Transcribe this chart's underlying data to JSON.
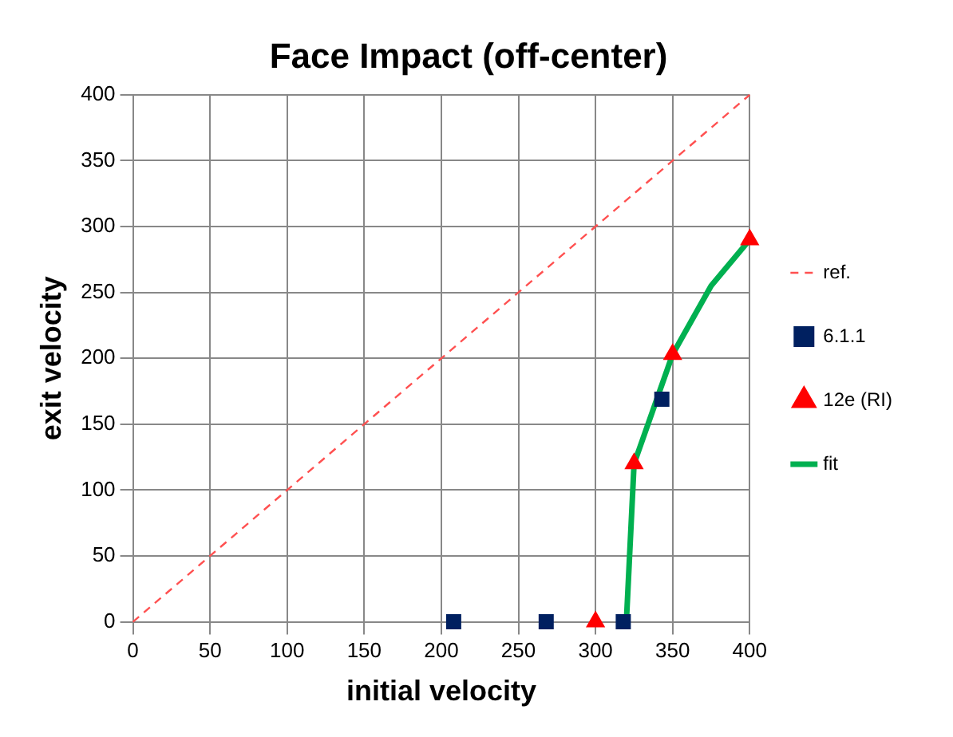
{
  "chart_data": {
    "type": "scatter",
    "title": "Face Impact (off-center)",
    "xlabel": "initial velocity",
    "ylabel": "exit velocity",
    "xlim": [
      0,
      400
    ],
    "xticks": [
      0,
      50,
      100,
      150,
      200,
      250,
      300,
      350,
      400
    ],
    "ylim": [
      0,
      400
    ],
    "yticks": [
      0,
      50,
      100,
      150,
      200,
      250,
      300,
      350,
      400
    ],
    "grid": true,
    "legend": "right",
    "series": [
      {
        "name": "ref.",
        "type": "line",
        "color": "#ff5050",
        "line_style": "dashed",
        "marker": "none",
        "x": [
          0,
          400
        ],
        "values": [
          0,
          400
        ]
      },
      {
        "name": "6.1.1",
        "type": "scatter",
        "color": "#002060",
        "marker": "square",
        "x": [
          208,
          268,
          318,
          343
        ],
        "values": [
          0,
          0,
          0,
          169
        ]
      },
      {
        "name": "12e (RI)",
        "type": "scatter",
        "color": "#ff0000",
        "marker": "triangle",
        "x": [
          300,
          325,
          350,
          400
        ],
        "values": [
          0,
          120,
          203,
          290
        ]
      },
      {
        "name": "fit",
        "type": "line",
        "color": "#00b050",
        "line_style": "solid",
        "marker": "none",
        "x": [
          320,
          325,
          350,
          375,
          400
        ],
        "values": [
          0,
          120,
          203,
          255,
          290
        ]
      }
    ]
  }
}
